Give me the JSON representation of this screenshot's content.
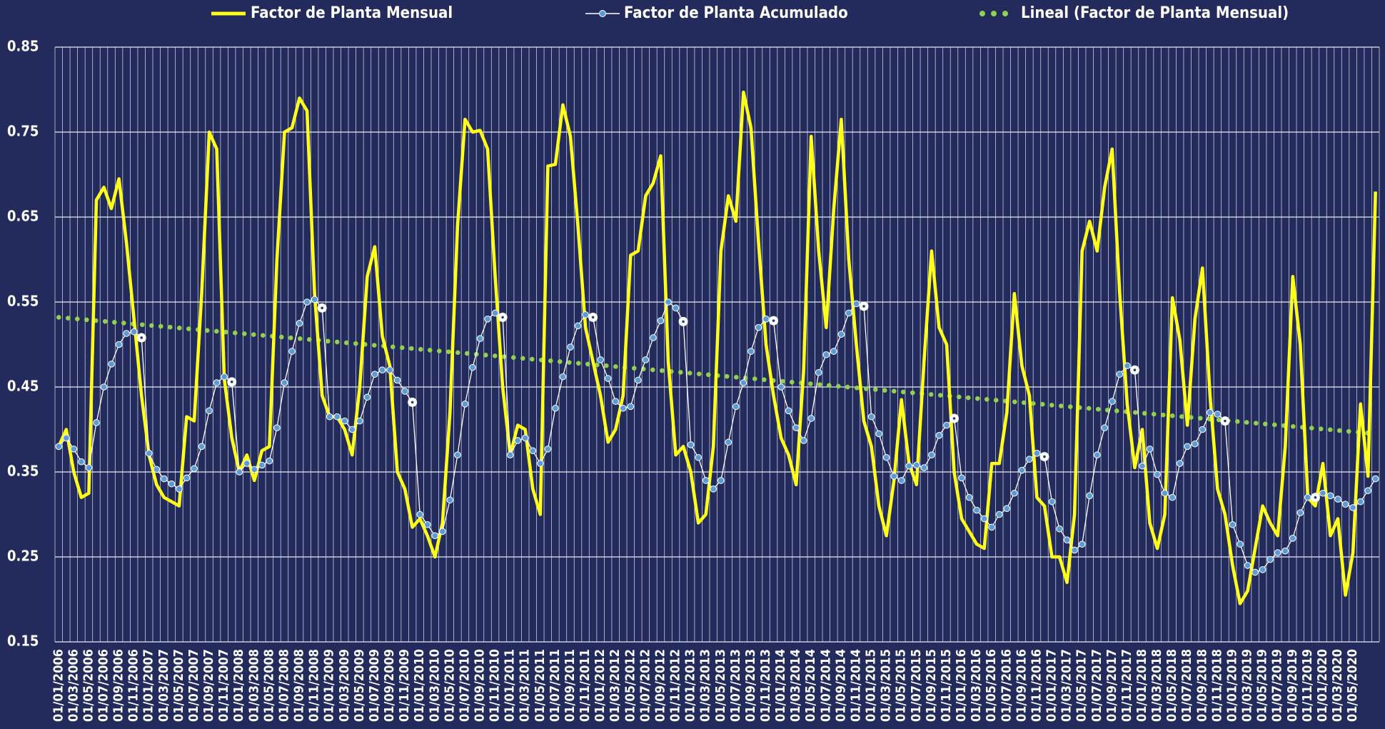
{
  "chart_data": {
    "type": "line",
    "categories": [
      "01/01/2006",
      null,
      "01/03/2006",
      null,
      "01/05/2006",
      null,
      "01/07/2006",
      null,
      "01/09/2006",
      null,
      "01/11/2006",
      null,
      "01/01/2007",
      null,
      "01/03/2007",
      null,
      "01/05/2007",
      null,
      "01/07/2007",
      null,
      "01/09/2007",
      null,
      "01/11/2007",
      null,
      "01/01/2008",
      null,
      "01/03/2008",
      null,
      "01/05/2008",
      null,
      "01/07/2008",
      null,
      "01/09/2008",
      null,
      "01/11/2008",
      null,
      "01/01/2009",
      null,
      "01/03/2009",
      null,
      "01/05/2009",
      null,
      "01/07/2009",
      null,
      "01/09/2009",
      null,
      "01/11/2009",
      null,
      "01/01/2010",
      null,
      "01/03/2010",
      null,
      "01/05/2010",
      null,
      "01/07/2010",
      null,
      "01/09/2010",
      null,
      "01/11/2010",
      null,
      "01/01/2011",
      null,
      "01/03/2011",
      null,
      "01/05/2011",
      null,
      "01/07/2011",
      null,
      "01/09/2011",
      null,
      "01/11/2011",
      null,
      "01/01/2012",
      null,
      "01/03/2012",
      null,
      "01/05/2012",
      null,
      "01/07/2012",
      null,
      "01/09/2012",
      null,
      "01/11/2012",
      null,
      "01/01/2013",
      null,
      "01/03/2013",
      null,
      "01/05/2013",
      null,
      "01/07/2013",
      null,
      "01/09/2013",
      null,
      "01/11/2013",
      null,
      "01/01/2014",
      null,
      "01/03/2014",
      null,
      "01/05/2014",
      null,
      "01/07/2014",
      null,
      "01/09/2014",
      null,
      "01/11/2014",
      null,
      "01/01/2015",
      null,
      "01/03/2015",
      null,
      "01/05/2015",
      null,
      "01/07/2015",
      null,
      "01/09/2015",
      null,
      "01/11/2015",
      null,
      "01/01/2016",
      null,
      "01/03/2016",
      null,
      "01/05/2016",
      null,
      "01/07/2016",
      null,
      "01/09/2016",
      null,
      "01/11/2016",
      null,
      "01/01/2017",
      null,
      "01/03/2017",
      null,
      "01/05/2017",
      null,
      "01/07/2017",
      null,
      "01/09/2017",
      null,
      "01/11/2017",
      null,
      "01/01/2018",
      null,
      "01/03/2018",
      null,
      "01/05/2018",
      null,
      "01/07/2018",
      null,
      "01/09/2018",
      null,
      "01/11/2018",
      null,
      "01/01/2019",
      null,
      "01/03/2019",
      null,
      "01/05/2019",
      null,
      "01/07/2019",
      null,
      "01/09/2019",
      null,
      "01/11/2019",
      null,
      "01/01/2020",
      null,
      "01/03/2020",
      null,
      "01/05/2020",
      null,
      null,
      null
    ],
    "series": [
      {
        "name": "Factor de Planta Mensual",
        "color": "#ffff1a",
        "values": [
          0.38,
          0.4,
          0.35,
          0.32,
          0.325,
          0.67,
          0.685,
          0.66,
          0.695,
          0.62,
          0.53,
          0.44,
          0.37,
          0.335,
          0.32,
          0.315,
          0.31,
          0.415,
          0.41,
          0.56,
          0.75,
          0.73,
          0.46,
          0.39,
          0.35,
          0.37,
          0.34,
          0.375,
          0.38,
          0.6,
          0.75,
          0.755,
          0.79,
          0.775,
          0.56,
          0.44,
          0.415,
          0.415,
          0.4,
          0.37,
          0.45,
          0.58,
          0.615,
          0.51,
          0.475,
          0.35,
          0.33,
          0.285,
          0.295,
          0.275,
          0.25,
          0.29,
          0.42,
          0.64,
          0.765,
          0.75,
          0.752,
          0.73,
          0.58,
          0.45,
          0.37,
          0.405,
          0.4,
          0.33,
          0.3,
          0.71,
          0.712,
          0.782,
          0.745,
          0.64,
          0.52,
          0.48,
          0.44,
          0.385,
          0.4,
          0.44,
          0.605,
          0.61,
          0.675,
          0.69,
          0.722,
          0.48,
          0.37,
          0.38,
          0.35,
          0.29,
          0.3,
          0.38,
          0.61,
          0.675,
          0.645,
          0.797,
          0.755,
          0.62,
          0.5,
          0.44,
          0.39,
          0.37,
          0.335,
          0.47,
          0.745,
          0.61,
          0.52,
          0.66,
          0.765,
          0.6,
          0.5,
          0.41,
          0.38,
          0.31,
          0.275,
          0.34,
          0.435,
          0.36,
          0.335,
          0.48,
          0.61,
          0.52,
          0.5,
          0.35,
          0.295,
          0.28,
          0.265,
          0.26,
          0.36,
          0.36,
          0.42,
          0.56,
          0.475,
          0.44,
          0.32,
          0.31,
          0.25,
          0.25,
          0.22,
          0.3,
          0.61,
          0.645,
          0.61,
          0.685,
          0.73,
          0.56,
          0.43,
          0.355,
          0.4,
          0.29,
          0.26,
          0.3,
          0.555,
          0.505,
          0.405,
          0.53,
          0.59,
          0.44,
          0.33,
          0.3,
          0.24,
          0.195,
          0.21,
          0.26,
          0.31,
          0.29,
          0.275,
          0.38,
          0.58,
          0.5,
          0.32,
          0.31,
          0.36,
          0.275,
          0.295,
          0.205,
          0.255,
          0.43,
          0.345,
          0.68
        ]
      },
      {
        "name": "Factor de Planta Acumulado",
        "color": "#5b9bd5",
        "values": [
          0.38,
          0.39,
          0.377,
          0.362,
          0.355,
          0.408,
          0.45,
          0.477,
          0.5,
          0.513,
          0.515,
          0.508,
          0.372,
          0.353,
          0.342,
          0.336,
          0.33,
          0.343,
          0.354,
          0.38,
          0.422,
          0.455,
          0.462,
          0.456,
          0.35,
          0.36,
          0.353,
          0.358,
          0.363,
          0.402,
          0.455,
          0.492,
          0.525,
          0.55,
          0.553,
          0.543,
          0.415,
          0.415,
          0.41,
          0.4,
          0.41,
          0.438,
          0.465,
          0.47,
          0.47,
          0.458,
          0.445,
          0.432,
          0.3,
          0.288,
          0.275,
          0.28,
          0.317,
          0.37,
          0.43,
          0.473,
          0.507,
          0.53,
          0.537,
          0.532,
          0.37,
          0.387,
          0.39,
          0.375,
          0.36,
          0.377,
          0.425,
          0.462,
          0.497,
          0.522,
          0.535,
          0.532,
          0.482,
          0.46,
          0.433,
          0.425,
          0.427,
          0.458,
          0.482,
          0.508,
          0.528,
          0.55,
          0.543,
          0.527,
          0.382,
          0.367,
          0.34,
          0.33,
          0.34,
          0.385,
          0.427,
          0.455,
          0.492,
          0.52,
          0.53,
          0.528,
          0.45,
          0.422,
          0.402,
          0.387,
          0.413,
          0.467,
          0.488,
          0.492,
          0.512,
          0.537,
          0.548,
          0.545,
          0.415,
          0.395,
          0.367,
          0.345,
          0.34,
          0.357,
          0.358,
          0.355,
          0.37,
          0.393,
          0.405,
          0.413,
          0.343,
          0.32,
          0.305,
          0.295,
          0.285,
          0.3,
          0.307,
          0.325,
          0.352,
          0.365,
          0.372,
          0.368,
          0.315,
          0.283,
          0.27,
          0.258,
          0.265,
          0.322,
          0.37,
          0.402,
          0.433,
          0.465,
          0.475,
          0.47,
          0.357,
          0.377,
          0.347,
          0.325,
          0.32,
          0.36,
          0.38,
          0.383,
          0.4,
          0.42,
          0.418,
          0.41,
          0.288,
          0.265,
          0.24,
          0.232,
          0.235,
          0.247,
          0.255,
          0.257,
          0.272,
          0.302,
          0.32,
          0.32,
          0.325,
          0.322,
          0.318,
          0.312,
          0.308,
          0.315,
          0.328,
          0.342
        ]
      }
    ],
    "trend": {
      "name": "Lineal (Factor de Planta Mensual)",
      "color": "#92d050",
      "start": 0.532,
      "end": 0.395
    },
    "ylim": [
      0.15,
      0.85
    ],
    "yticks": [
      0.15,
      0.25,
      0.35,
      0.45,
      0.55,
      0.65,
      0.75,
      0.85
    ],
    "grid": true,
    "legend": "top"
  }
}
